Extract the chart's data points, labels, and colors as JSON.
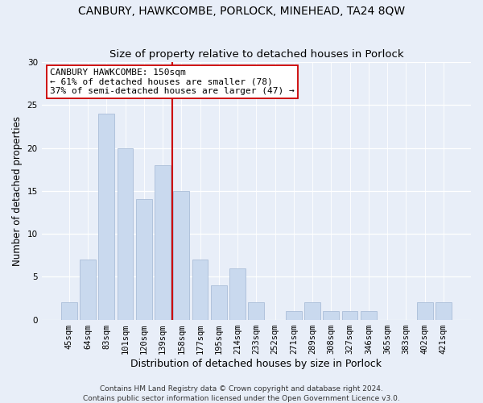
{
  "title": "CANBURY, HAWKCOMBE, PORLOCK, MINEHEAD, TA24 8QW",
  "subtitle": "Size of property relative to detached houses in Porlock",
  "xlabel": "Distribution of detached houses by size in Porlock",
  "ylabel": "Number of detached properties",
  "categories": [
    "45sqm",
    "64sqm",
    "83sqm",
    "101sqm",
    "120sqm",
    "139sqm",
    "158sqm",
    "177sqm",
    "195sqm",
    "214sqm",
    "233sqm",
    "252sqm",
    "271sqm",
    "289sqm",
    "308sqm",
    "327sqm",
    "346sqm",
    "365sqm",
    "383sqm",
    "402sqm",
    "421sqm"
  ],
  "values": [
    2,
    7,
    24,
    20,
    14,
    18,
    15,
    7,
    4,
    6,
    2,
    0,
    1,
    2,
    1,
    1,
    1,
    0,
    0,
    2,
    2
  ],
  "bar_color": "#c9d9ee",
  "bar_edgecolor": "#aabdd8",
  "vline_x": 5.5,
  "vline_color": "#cc0000",
  "annotation_line1": "CANBURY HAWKCOMBE: 150sqm",
  "annotation_line2": "← 61% of detached houses are smaller (78)",
  "annotation_line3": "37% of semi-detached houses are larger (47) →",
  "annotation_box_color": "#ffffff",
  "annotation_box_edgecolor": "#cc0000",
  "ylim": [
    0,
    30
  ],
  "yticks": [
    0,
    5,
    10,
    15,
    20,
    25,
    30
  ],
  "footnote1": "Contains HM Land Registry data © Crown copyright and database right 2024.",
  "footnote2": "Contains public sector information licensed under the Open Government Licence v3.0.",
  "bg_color": "#e8eef8",
  "plot_bg_color": "#e8eef8",
  "title_fontsize": 10,
  "subtitle_fontsize": 9.5,
  "xlabel_fontsize": 9,
  "ylabel_fontsize": 8.5,
  "tick_fontsize": 7.5,
  "annotation_fontsize": 8,
  "footnote_fontsize": 6.5
}
